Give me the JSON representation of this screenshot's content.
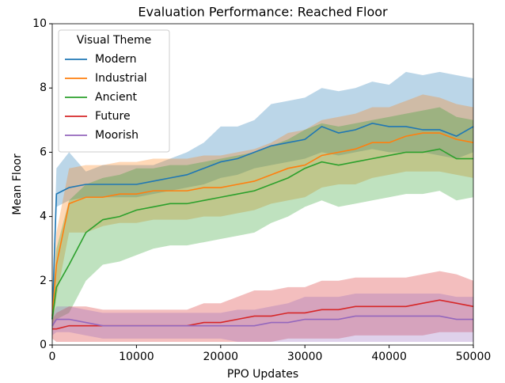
{
  "chart_data": {
    "type": "line",
    "title": "Evaluation Performance: Reached Floor",
    "x_label": "PPO Updates",
    "y_label": "Mean Floor",
    "legend_title": "Visual Theme",
    "legend": "upper left",
    "x": [
      0,
      500,
      2000,
      4000,
      6000,
      8000,
      10000,
      12000,
      14000,
      16000,
      18000,
      20000,
      22000,
      24000,
      26000,
      28000,
      30000,
      32000,
      34000,
      36000,
      38000,
      40000,
      42000,
      44000,
      46000,
      48000,
      50000
    ],
    "xlim": [
      0,
      50000
    ],
    "xticks": [
      0,
      10000,
      20000,
      30000,
      40000,
      50000
    ],
    "ylim": [
      0,
      10
    ],
    "yticks": [
      0,
      2,
      4,
      6,
      8,
      10
    ],
    "series": [
      {
        "name": "Modern",
        "color": "#1f77b4",
        "values": [
          0.8,
          4.7,
          4.9,
          5.0,
          5.0,
          5.0,
          5.0,
          5.1,
          5.2,
          5.3,
          5.5,
          5.7,
          5.8,
          6.0,
          6.2,
          6.3,
          6.4,
          6.8,
          6.6,
          6.7,
          6.9,
          6.8,
          6.8,
          6.7,
          6.7,
          6.5,
          6.8
        ],
        "lower": [
          0.5,
          4.3,
          4.5,
          4.6,
          4.6,
          4.6,
          4.6,
          4.7,
          4.8,
          4.9,
          5.0,
          5.2,
          5.3,
          5.5,
          5.6,
          5.7,
          5.8,
          6.0,
          5.9,
          6.0,
          6.1,
          6.0,
          6.0,
          6.0,
          5.9,
          5.8,
          6.0
        ],
        "upper": [
          1.2,
          5.5,
          6.0,
          5.4,
          5.6,
          5.6,
          5.6,
          5.6,
          5.8,
          6.0,
          6.3,
          6.8,
          6.8,
          7.0,
          7.5,
          7.6,
          7.7,
          8.0,
          7.9,
          8.0,
          8.2,
          8.1,
          8.5,
          8.4,
          8.5,
          8.4,
          8.3
        ]
      },
      {
        "name": "Industrial",
        "color": "#ff7f0e",
        "values": [
          0.9,
          2.5,
          4.4,
          4.6,
          4.6,
          4.7,
          4.7,
          4.8,
          4.8,
          4.8,
          4.9,
          4.9,
          5.0,
          5.1,
          5.3,
          5.5,
          5.6,
          5.9,
          6.0,
          6.1,
          6.3,
          6.3,
          6.5,
          6.6,
          6.6,
          6.4,
          6.3
        ],
        "lower": [
          0.5,
          1.5,
          3.5,
          3.5,
          3.7,
          3.8,
          3.8,
          3.9,
          3.9,
          3.9,
          4.0,
          4.0,
          4.1,
          4.2,
          4.4,
          4.5,
          4.6,
          4.9,
          5.0,
          5.0,
          5.2,
          5.3,
          5.4,
          5.4,
          5.4,
          5.3,
          5.2
        ],
        "upper": [
          1.2,
          3.5,
          5.5,
          5.6,
          5.6,
          5.7,
          5.7,
          5.8,
          5.8,
          5.8,
          5.9,
          5.9,
          6.0,
          6.1,
          6.3,
          6.6,
          6.7,
          7.0,
          7.1,
          7.2,
          7.4,
          7.4,
          7.6,
          7.8,
          7.7,
          7.5,
          7.4
        ]
      },
      {
        "name": "Ancient",
        "color": "#2ca02c",
        "values": [
          0.8,
          1.8,
          2.5,
          3.5,
          3.9,
          4.0,
          4.2,
          4.3,
          4.4,
          4.4,
          4.5,
          4.6,
          4.7,
          4.8,
          5.0,
          5.2,
          5.5,
          5.7,
          5.6,
          5.7,
          5.8,
          5.9,
          6.0,
          6.0,
          6.1,
          5.8,
          5.8
        ],
        "lower": [
          0.5,
          0.8,
          1.0,
          2.0,
          2.5,
          2.6,
          2.8,
          3.0,
          3.1,
          3.1,
          3.2,
          3.3,
          3.4,
          3.5,
          3.8,
          4.0,
          4.3,
          4.5,
          4.3,
          4.4,
          4.5,
          4.6,
          4.7,
          4.7,
          4.8,
          4.5,
          4.6
        ],
        "upper": [
          1.2,
          3.0,
          4.5,
          5.0,
          5.2,
          5.3,
          5.5,
          5.5,
          5.6,
          5.6,
          5.7,
          5.8,
          5.9,
          6.0,
          6.2,
          6.4,
          6.7,
          6.9,
          6.8,
          6.9,
          7.0,
          7.1,
          7.2,
          7.3,
          7.4,
          7.1,
          7.0
        ]
      },
      {
        "name": "Future",
        "color": "#d62728",
        "values": [
          0.5,
          0.5,
          0.6,
          0.6,
          0.6,
          0.6,
          0.6,
          0.6,
          0.6,
          0.6,
          0.7,
          0.7,
          0.8,
          0.9,
          0.9,
          1.0,
          1.0,
          1.1,
          1.1,
          1.2,
          1.2,
          1.2,
          1.2,
          1.3,
          1.4,
          1.3,
          1.2
        ],
        "lower": [
          0.2,
          0.1,
          0.1,
          0.1,
          0.1,
          0.1,
          0.1,
          0.1,
          0.1,
          0.1,
          0.1,
          0.1,
          0.1,
          0.1,
          0.1,
          0.2,
          0.2,
          0.2,
          0.2,
          0.3,
          0.3,
          0.3,
          0.3,
          0.3,
          0.4,
          0.4,
          0.4
        ],
        "upper": [
          0.8,
          1.0,
          1.2,
          1.2,
          1.1,
          1.1,
          1.1,
          1.1,
          1.1,
          1.1,
          1.3,
          1.3,
          1.5,
          1.7,
          1.7,
          1.8,
          1.8,
          2.0,
          2.0,
          2.1,
          2.1,
          2.1,
          2.1,
          2.2,
          2.3,
          2.2,
          2.0
        ]
      },
      {
        "name": "Moorish",
        "color": "#9467bd",
        "values": [
          0.6,
          0.8,
          0.8,
          0.7,
          0.6,
          0.6,
          0.6,
          0.6,
          0.6,
          0.6,
          0.6,
          0.6,
          0.6,
          0.6,
          0.7,
          0.7,
          0.8,
          0.8,
          0.8,
          0.9,
          0.9,
          0.9,
          0.9,
          0.9,
          0.9,
          0.8,
          0.8
        ],
        "lower": [
          0.3,
          0.4,
          0.4,
          0.3,
          0.2,
          0.2,
          0.2,
          0.2,
          0.2,
          0.2,
          0.2,
          0.2,
          0.1,
          0.1,
          0.1,
          0.1,
          0.1,
          0.1,
          0.1,
          0.1,
          0.1,
          0.1,
          0.1,
          0.1,
          0.1,
          0.1,
          0.1
        ],
        "upper": [
          0.9,
          1.2,
          1.2,
          1.1,
          1.0,
          1.0,
          1.0,
          1.0,
          1.0,
          1.0,
          1.0,
          1.0,
          1.1,
          1.1,
          1.2,
          1.3,
          1.5,
          1.5,
          1.5,
          1.6,
          1.6,
          1.6,
          1.6,
          1.6,
          1.6,
          1.5,
          1.5
        ]
      }
    ]
  }
}
